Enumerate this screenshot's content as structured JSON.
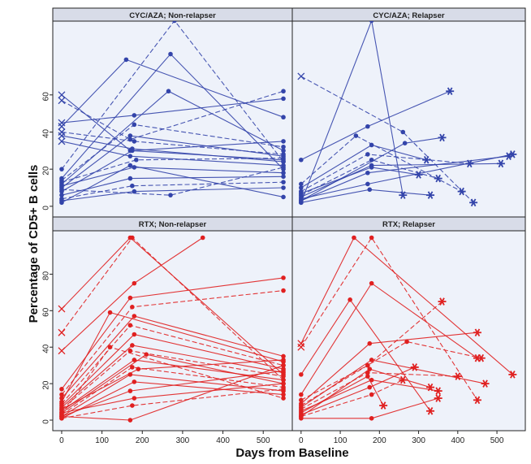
{
  "chart_data": {
    "type": "line",
    "xlabel": "Days from Baseline",
    "ylabel": "Percentage of CD5+ B cells",
    "xlim": [
      -10,
      560
    ],
    "x_ticks": [
      "0",
      "100",
      "200",
      "300",
      "400",
      "500"
    ],
    "x_tick_values": [
      0,
      100,
      200,
      300,
      400,
      500
    ],
    "colors": {
      "cyc": "#3344aa",
      "rtx": "#e02020",
      "panel_bg": "#eef2fa",
      "strip_bg": "#d8dce8"
    },
    "panels": [
      {
        "title": "CYC/AZA; Non-relapser",
        "group": "cyc",
        "ylim": [
          -4,
          98
        ],
        "y_ticks": [
          "0",
          "20",
          "40",
          "60"
        ],
        "y_tick_values": [
          0,
          20,
          40,
          60
        ],
        "series": [
          {
            "x": [
              0,
              170,
              550
            ],
            "y": [
              60,
              30,
              25
            ]
          },
          {
            "x": [
              0,
              170,
              550
            ],
            "y": [
              57,
              36,
              62
            ]
          },
          {
            "x": [
              0,
              180,
              550
            ],
            "y": [
              45,
              49,
              58
            ]
          },
          {
            "x": [
              0,
              160,
              550
            ],
            "y": [
              43,
              79,
              48
            ]
          },
          {
            "x": [
              0,
              180,
              550
            ],
            "y": [
              40,
              35,
              28
            ]
          },
          {
            "x": [
              0,
              175,
              550
            ],
            "y": [
              38,
              31,
              24
            ]
          },
          {
            "x": [
              0,
              170,
              550
            ],
            "y": [
              35,
              27,
              22
            ]
          },
          {
            "x": [
              0,
              280,
              550
            ],
            "y": [
              20,
              100,
              24
            ]
          },
          {
            "x": [
              0,
              270,
              550
            ],
            "y": [
              15,
              82,
              20
            ]
          },
          {
            "x": [
              0,
              265,
              550
            ],
            "y": [
              12,
              62,
              30
            ]
          },
          {
            "x": [
              0,
              180,
              550
            ],
            "y": [
              14,
              44,
              32
            ]
          },
          {
            "x": [
              0,
              170,
              550
            ],
            "y": [
              10,
              38,
              27
            ]
          },
          {
            "x": [
              0,
              175,
              550
            ],
            "y": [
              8,
              30,
              35
            ]
          },
          {
            "x": [
              0,
              185,
              550
            ],
            "y": [
              13,
              25,
              26
            ]
          },
          {
            "x": [
              0,
              180,
              550
            ],
            "y": [
              11,
              21,
              18
            ]
          },
          {
            "x": [
              0,
              170,
              550
            ],
            "y": [
              6,
              15,
              16
            ]
          },
          {
            "x": [
              0,
              175,
              550
            ],
            "y": [
              4,
              11,
              13
            ]
          },
          {
            "x": [
              0,
              180,
              550
            ],
            "y": [
              3,
              8,
              10
            ]
          },
          {
            "x": [
              0,
              170,
              550
            ],
            "y": [
              2,
              22,
              5
            ]
          },
          {
            "x": [
              0,
              270,
              550
            ],
            "y": [
              9,
              6,
              21
            ]
          }
        ]
      },
      {
        "title": "CYC/AZA; Relapser",
        "group": "cyc",
        "ylim": [
          -4,
          98
        ],
        "y_ticks": [
          "0",
          "20",
          "40",
          "60"
        ],
        "y_tick_values": [
          0,
          20,
          40,
          60
        ],
        "series": [
          {
            "x": [
              0,
              180,
              260
            ],
            "y": [
              2,
              100,
              6
            ]
          },
          {
            "x": [
              0,
              260,
              440
            ],
            "y": [
              70,
              40,
              2
            ]
          },
          {
            "x": [
              0,
              170,
              380
            ],
            "y": [
              25,
              43,
              62
            ]
          },
          {
            "x": [
              0,
              180,
              320
            ],
            "y": [
              10,
              33,
              25
            ]
          },
          {
            "x": [
              0,
              170,
              430
            ],
            "y": [
              8,
              28,
              23
            ]
          },
          {
            "x": [
              0,
              180,
              510
            ],
            "y": [
              5,
              22,
              23
            ]
          },
          {
            "x": [
              0,
              170,
              530
            ],
            "y": [
              3,
              18,
              27
            ]
          },
          {
            "x": [
              0,
              180,
              350
            ],
            "y": [
              6,
              25,
              15
            ]
          },
          {
            "x": [
              0,
              170,
              540
            ],
            "y": [
              4,
              12,
              28
            ]
          },
          {
            "x": [
              0,
              175,
              330
            ],
            "y": [
              2,
              9,
              6
            ]
          },
          {
            "x": [
              0,
              140,
              410
            ],
            "y": [
              12,
              38,
              8
            ]
          },
          {
            "x": [
              0,
              265,
              360
            ],
            "y": [
              3,
              34,
              37
            ]
          },
          {
            "x": [
              0,
              180,
              300
            ],
            "y": [
              7,
              21,
              17
            ]
          }
        ]
      },
      {
        "title": "RTX; Non-relapser",
        "group": "rtx",
        "ylim": [
          -4,
          102
        ],
        "y_ticks": [
          "0",
          "20",
          "40",
          "60",
          "80"
        ],
        "y_tick_values": [
          0,
          20,
          40,
          60,
          80
        ],
        "series": [
          {
            "x": [
              0,
              170,
              550
            ],
            "y": [
              61,
              100,
              25
            ]
          },
          {
            "x": [
              0,
              175,
              550
            ],
            "y": [
              48,
              100,
              22
            ]
          },
          {
            "x": [
              0,
              180,
              350
            ],
            "y": [
              38,
              75,
              100
            ]
          },
          {
            "x": [
              0,
              170,
              550
            ],
            "y": [
              17,
              67,
              78
            ]
          },
          {
            "x": [
              0,
              175,
              550
            ],
            "y": [
              14,
              62,
              71
            ]
          },
          {
            "x": [
              0,
              180,
              550
            ],
            "y": [
              12,
              57,
              35
            ]
          },
          {
            "x": [
              0,
              120,
              550
            ],
            "y": [
              10,
              59,
              32
            ]
          },
          {
            "x": [
              0,
              170,
              550
            ],
            "y": [
              9,
              52,
              30
            ]
          },
          {
            "x": [
              0,
              180,
              550
            ],
            "y": [
              8,
              47,
              28
            ]
          },
          {
            "x": [
              0,
              175,
              550
            ],
            "y": [
              7,
              41,
              26
            ]
          },
          {
            "x": [
              0,
              170,
              550
            ],
            "y": [
              6,
              38,
              24
            ]
          },
          {
            "x": [
              0,
              180,
              550
            ],
            "y": [
              5,
              33,
              22
            ]
          },
          {
            "x": [
              0,
              210,
              550
            ],
            "y": [
              4,
              36,
              20
            ]
          },
          {
            "x": [
              0,
              175,
              550
            ],
            "y": [
              3,
              29,
              18
            ]
          },
          {
            "x": [
              0,
              170,
              550
            ],
            "y": [
              2,
              25,
              16
            ]
          },
          {
            "x": [
              0,
              180,
              550
            ],
            "y": [
              1,
              21,
              14
            ]
          },
          {
            "x": [
              0,
              120,
              550
            ],
            "y": [
              3,
              40,
              12
            ]
          },
          {
            "x": [
              0,
              170,
              550
            ],
            "y": [
              2,
              16,
              27
            ]
          },
          {
            "x": [
              0,
              180,
              550
            ],
            "y": [
              4,
              12,
              20
            ]
          },
          {
            "x": [
              0,
              175,
              550
            ],
            "y": [
              1,
              8,
              17
            ]
          },
          {
            "x": [
              0,
              170,
              550
            ],
            "y": [
              2,
              0,
              30
            ]
          },
          {
            "x": [
              0,
              190,
              550
            ],
            "y": [
              6,
              28,
              33
            ]
          }
        ]
      },
      {
        "title": "RTX; Relapser",
        "group": "rtx",
        "ylim": [
          -4,
          102
        ],
        "y_ticks": [
          "0",
          "20",
          "40",
          "60",
          "80"
        ],
        "y_tick_values": [
          0,
          20,
          40,
          60,
          80
        ],
        "series": [
          {
            "x": [
              0,
              135,
              540
            ],
            "y": [
              42,
              100,
              25
            ]
          },
          {
            "x": [
              0,
              180,
              450
            ],
            "y": [
              40,
              100,
              11
            ]
          },
          {
            "x": [
              0,
              125,
              330
            ],
            "y": [
              25,
              66,
              5
            ]
          },
          {
            "x": [
              0,
              180,
              450
            ],
            "y": [
              14,
              75,
              34
            ]
          },
          {
            "x": [
              0,
              170,
              360
            ],
            "y": [
              11,
              30,
              65
            ]
          },
          {
            "x": [
              0,
              175,
              450
            ],
            "y": [
              9,
              42,
              48
            ]
          },
          {
            "x": [
              0,
              180,
              470
            ],
            "y": [
              7,
              33,
              20
            ]
          },
          {
            "x": [
              0,
              170,
              400
            ],
            "y": [
              6,
              26,
              24
            ]
          },
          {
            "x": [
              0,
              180,
              350
            ],
            "y": [
              5,
              22,
              16
            ]
          },
          {
            "x": [
              0,
              175,
              290
            ],
            "y": [
              3,
              18,
              29
            ]
          },
          {
            "x": [
              0,
              180,
              260
            ],
            "y": [
              2,
              14,
              22
            ]
          },
          {
            "x": [
              0,
              170,
              210
            ],
            "y": [
              4,
              24,
              8
            ]
          },
          {
            "x": [
              0,
              180,
              350
            ],
            "y": [
              1,
              1,
              12
            ]
          },
          {
            "x": [
              0,
              270,
              460
            ],
            "y": [
              8,
              43,
              34
            ]
          },
          {
            "x": [
              0,
              175,
              330
            ],
            "y": [
              2,
              28,
              18
            ]
          }
        ]
      }
    ]
  }
}
